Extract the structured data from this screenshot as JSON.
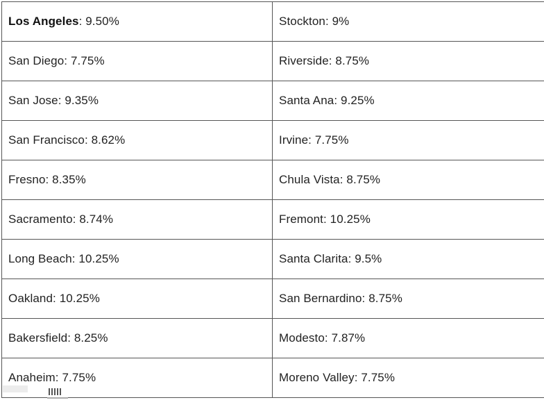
{
  "rows": [
    {
      "left": {
        "city": "Los Angeles",
        "separator": ": ",
        "rate": "9.50%"
      },
      "right": {
        "city": "Stockton",
        "separator": ": ",
        "rate": "9%"
      }
    },
    {
      "left": {
        "city": "San Diego",
        "separator": ": ",
        "rate": "7.75%"
      },
      "right": {
        "city": "Riverside",
        "separator": ": ",
        "rate": "8.75%"
      }
    },
    {
      "left": {
        "city": "San Jose",
        "separator": ": ",
        "rate": "9.35%"
      },
      "right": {
        "city": "Santa Ana",
        "separator": ": ",
        "rate": "9.25%"
      }
    },
    {
      "left": {
        "city": "San Francisco",
        "separator": ": ",
        "rate": "8.62%"
      },
      "right": {
        "city": "Irvine",
        "separator": ": ",
        "rate": "7.75%"
      }
    },
    {
      "left": {
        "city": "Fresno",
        "separator": ": ",
        "rate": "8.35%"
      },
      "right": {
        "city": "Chula Vista",
        "separator": ": ",
        "rate": "8.75%"
      }
    },
    {
      "left": {
        "city": "Sacramento",
        "separator": ": ",
        "rate": "8.74%"
      },
      "right": {
        "city": "Fremont",
        "separator": ": ",
        "rate": "10.25%"
      }
    },
    {
      "left": {
        "city": "Long Beach",
        "separator": ": ",
        "rate": "10.25%"
      },
      "right": {
        "city": "Santa Clarita",
        "separator": ": ",
        "rate": "9.5%"
      }
    },
    {
      "left": {
        "city": "Oakland",
        "separator": ": ",
        "rate": "10.25%"
      },
      "right": {
        "city": "San Bernardino",
        "separator": ": ",
        "rate": "8.75%"
      }
    },
    {
      "left": {
        "city": "Bakersfield",
        "separator": ": ",
        "rate": "8.25%"
      },
      "right": {
        "city": "Modesto",
        "separator": ": ",
        "rate": "7.87%"
      }
    },
    {
      "left": {
        "city": "Anaheim",
        "separator": ": ",
        "rate": "7.75%"
      },
      "right": {
        "city": "Moreno Valley",
        "separator": ": ",
        "rate": "7.75%"
      }
    }
  ],
  "colors": {
    "text": "#222222",
    "border": "#555555",
    "background": "#ffffff"
  }
}
